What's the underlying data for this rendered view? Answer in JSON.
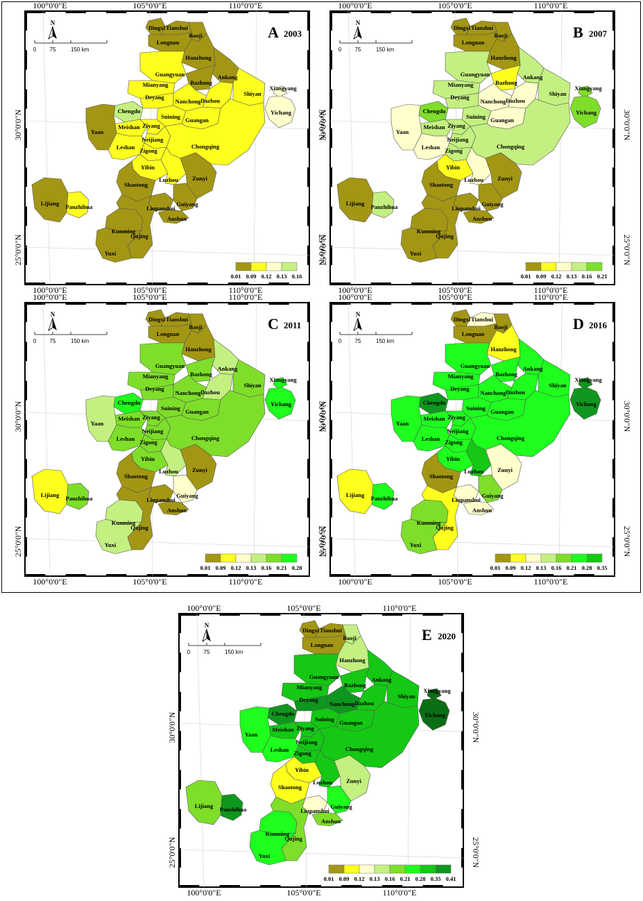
{
  "colors": {
    "c01": "#a39614",
    "c09": "#ffff1e",
    "c12": "#ffffcc",
    "c13": "#c4f081",
    "c16": "#7ede2a",
    "c21": "#1eff1e",
    "c28": "#14c814",
    "c35": "#0f961e",
    "c41": "#0a6e14",
    "c12b": "#ffff00"
  },
  "coords": {
    "lon100": "100°0'0\"E",
    "lon105": "105°0'0\"E",
    "lon110": "110°0'0\"E",
    "lat30": "30°0'0\"N",
    "lat25": "25°0'0\"N"
  },
  "scalebar": {
    "n": "N",
    "t0": "0",
    "t75": "75",
    "t150": "150 km"
  },
  "city_names": {
    "Dingxi": "Dingxi",
    "Tianshui": "Tianshui",
    "Baoji": "Baoji",
    "Longnan": "Longnan",
    "Hanzhong": "Hanzhong",
    "Ankang": "Ankang",
    "Guangyuan": "Guangyuan",
    "Bazhong": "Bazhong",
    "Mianyang": "Mianyang",
    "Deyang": "Deyang",
    "Nanchong": "Nanchong",
    "Dazhou": "Dazhou",
    "Chengdu": "Chengdu",
    "Suining": "Suining",
    "Guangan": "Guangan",
    "Shiyan": "Shiyan",
    "Xiangyang": "Xiangyang",
    "Yichang": "Yichang",
    "Meishan": "Meishan",
    "Ziyang": "Ziyang",
    "Yaan": "Yaan",
    "Neijiang": "Neijiang",
    "Chongqing": "Chongqing",
    "Leshan": "Leshan",
    "Zigong": "Zigong",
    "Yibin": "Yibin",
    "Luzhou": "Luzhou",
    "Zunyi": "Zunyi",
    "Shaotong": "Shaotong",
    "Lijiang": "Lijiang",
    "Panzhihua": "Panzhihua",
    "Liupanshui": "Liupanshui",
    "Guiyang": "Guiyang",
    "Anshun": "Anshun",
    "Kunming": "Kunming",
    "Qujing": "Qujing",
    "Yuxi": "Yuxi"
  },
  "panels": [
    {
      "letter": "A",
      "year": "2003",
      "legend": [
        "0.01",
        "0.09",
        "0.12",
        "0.13",
        "0.16"
      ],
      "legend_colors": [
        "c01",
        "c09",
        "c12",
        "c13"
      ],
      "colors": {
        "Dingxi": "c01",
        "Tianshui": "c01",
        "Baoji": "c01",
        "Longnan": "c01",
        "Hanzhong": "c01",
        "Ankang": "c01",
        "Guangyuan": "c09",
        "Bazhong": "c01",
        "Mianyang": "c09",
        "Deyang": "c09",
        "Nanchong": "c09",
        "Dazhou": "c09",
        "Chengdu": "c13",
        "Suining": "c09",
        "Guangan": "c09",
        "Shiyan": "c09",
        "Xiangyang": "c12",
        "Yichang": "c12",
        "Meishan": "c09",
        "Ziyang": "c09",
        "Yaan": "c01",
        "Neijiang": "c09",
        "Chongqing": "c09",
        "Leshan": "c09",
        "Zigong": "c09",
        "Yibin": "c09",
        "Luzhou": "c09",
        "Zunyi": "c01",
        "Shaotong": "c01",
        "Lijiang": "c01",
        "Panzhihua": "c09",
        "Liupanshui": "c01",
        "Guiyang": "c01",
        "Anshun": "c01",
        "Kunming": "c01",
        "Qujing": "c01",
        "Yuxi": "c01"
      }
    },
    {
      "letter": "B",
      "year": "2007",
      "legend": [
        "0.01",
        "0.09",
        "0.12",
        "0.13",
        "0.16",
        "0.21"
      ],
      "legend_colors": [
        "c01",
        "c09",
        "c12",
        "c13",
        "c16"
      ],
      "colors": {
        "Dingxi": "c01",
        "Tianshui": "c01",
        "Baoji": "c01",
        "Longnan": "c01",
        "Hanzhong": "c01",
        "Ankang": "c13",
        "Guangyuan": "c13",
        "Bazhong": "c09",
        "Mianyang": "c13",
        "Deyang": "c13",
        "Nanchong": "c12",
        "Dazhou": "c12",
        "Chengdu": "c16",
        "Suining": "c13",
        "Guangan": "c12",
        "Shiyan": "c13",
        "Xiangyang": "c16",
        "Yichang": "c16",
        "Meishan": "c13",
        "Ziyang": "c13",
        "Yaan": "c12",
        "Neijiang": "c13",
        "Chongqing": "c13",
        "Leshan": "c12",
        "Zigong": "c13",
        "Yibin": "c09",
        "Luzhou": "c12",
        "Zunyi": "c01",
        "Shaotong": "c01",
        "Lijiang": "c01",
        "Panzhihua": "c13",
        "Liupanshui": "c01",
        "Guiyang": "c01",
        "Anshun": "c01",
        "Kunming": "c01",
        "Qujing": "c01",
        "Yuxi": "c01"
      }
    },
    {
      "letter": "C",
      "year": "2011",
      "legend": [
        "0.01",
        "0.09",
        "0.12",
        "0.13",
        "0.16",
        "0.21",
        "0.28"
      ],
      "legend_colors": [
        "c01",
        "c09",
        "c12",
        "c13",
        "c16",
        "c21"
      ],
      "colors": {
        "Dingxi": "c01",
        "Tianshui": "c01",
        "Baoji": "c01",
        "Longnan": "c01",
        "Hanzhong": "c01",
        "Ankang": "c13",
        "Guangyuan": "c16",
        "Bazhong": "c16",
        "Mianyang": "c16",
        "Deyang": "c16",
        "Nanchong": "c16",
        "Dazhou": "c13",
        "Chengdu": "c21",
        "Suining": "c16",
        "Guangan": "c16",
        "Shiyan": "c16",
        "Xiangyang": "c21",
        "Yichang": "c21",
        "Meishan": "c16",
        "Ziyang": "c16",
        "Yaan": "c13",
        "Neijiang": "c16",
        "Chongqing": "c16",
        "Leshan": "c16",
        "Zigong": "c16",
        "Yibin": "c16",
        "Luzhou": "c13",
        "Zunyi": "c01",
        "Shaotong": "c01",
        "Lijiang": "c09",
        "Panzhihua": "c16",
        "Liupanshui": "c01",
        "Guiyang": "c12",
        "Anshun": "c01",
        "Kunming": "c13",
        "Qujing": "c01",
        "Yuxi": "c13"
      }
    },
    {
      "letter": "D",
      "year": "2016",
      "legend": [
        "0.01",
        "0.09",
        "0.12",
        "0.13",
        "0.16",
        "0.21",
        "0.28",
        "0.35"
      ],
      "legend_colors": [
        "c01",
        "c09",
        "c12",
        "c13",
        "c16",
        "c21",
        "c28"
      ],
      "colors": {
        "Dingxi": "c01",
        "Tianshui": "c12",
        "Baoji": "c01",
        "Longnan": "c01",
        "Hanzhong": "c09",
        "Ankang": "c21",
        "Guangyuan": "c21",
        "Bazhong": "c21",
        "Mianyang": "c21",
        "Deyang": "c21",
        "Nanchong": "c21",
        "Dazhou": "c21",
        "Chengdu": "c35",
        "Suining": "c21",
        "Guangan": "c21",
        "Shiyan": "c21",
        "Xiangyang": "c35",
        "Yichang": "c35",
        "Meishan": "c21",
        "Ziyang": "c21",
        "Yaan": "c21",
        "Neijiang": "c21",
        "Chongqing": "c21",
        "Leshan": "c21",
        "Zigong": "c21",
        "Yibin": "c21",
        "Luzhou": "c28",
        "Zunyi": "c12",
        "Shaotong": "c01",
        "Lijiang": "c09",
        "Panzhihua": "c21",
        "Liupanshui": "c12",
        "Guiyang": "c16",
        "Anshun": "c12",
        "Kunming": "c16",
        "Qujing": "c09",
        "Yuxi": "c16"
      }
    },
    {
      "letter": "E",
      "year": "2020",
      "legend": [
        "0.01",
        "0.09",
        "0.12",
        "0.13",
        "0.16",
        "0.21",
        "0.28",
        "0.35",
        "0.41"
      ],
      "legend_colors": [
        "c01",
        "c09",
        "c12",
        "c13",
        "c16",
        "c21",
        "c28",
        "c35"
      ],
      "colors": {
        "Dingxi": "c01",
        "Tianshui": "c01",
        "Baoji": "c13",
        "Longnan": "c01",
        "Hanzhong": "c13",
        "Ankang": "c28",
        "Guangyuan": "c28",
        "Bazhong": "c28",
        "Mianyang": "c28",
        "Deyang": "c35",
        "Nanchong": "c35",
        "Dazhou": "c28",
        "Chengdu": "c35",
        "Suining": "c28",
        "Guangan": "c28",
        "Shiyan": "c28",
        "Xiangyang": "c41",
        "Yichang": "c41",
        "Meishan": "c28",
        "Ziyang": "c28",
        "Yaan": "c21",
        "Neijiang": "c28",
        "Chongqing": "c28",
        "Leshan": "c21",
        "Zigong": "c28",
        "Yibin": "c09",
        "Luzhou": "c28",
        "Zunyi": "c13",
        "Shaotong": "c09",
        "Lijiang": "c16",
        "Panzhihua": "c35",
        "Liupanshui": "c12",
        "Guiyang": "c21",
        "Anshun": "c16",
        "Kunming": "c21",
        "Qujing": "c16",
        "Yuxi": "c21"
      }
    }
  ]
}
